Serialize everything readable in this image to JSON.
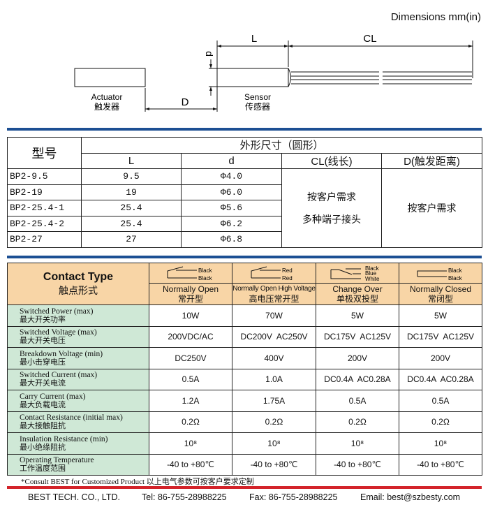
{
  "header": {
    "title": "Dimensions mm(in)"
  },
  "diagram": {
    "L": "L",
    "CL": "CL",
    "d": "d",
    "D": "D",
    "actuator_en": "Actuator",
    "actuator_cn": "触发器",
    "sensor_en": "Sensor",
    "sensor_cn": "传感器"
  },
  "dims_table": {
    "model_header": "型号",
    "group_header": "外形尺寸（圆形）",
    "columns": [
      "L",
      "d",
      "CL(线长)",
      "D(触发距离)"
    ],
    "rows": [
      {
        "model": "BP2-9.5",
        "L": "9.5",
        "d": "Φ4.0"
      },
      {
        "model": "BP2-19",
        "L": "19",
        "d": "Φ6.0"
      },
      {
        "model": "BP2-25.4-1",
        "L": "25.4",
        "d": "Φ5.6"
      },
      {
        "model": "BP2-25.4-2",
        "L": "25.4",
        "d": "Φ6.2"
      },
      {
        "model": "BP2-27",
        "L": "27",
        "d": "Φ6.8"
      }
    ],
    "cl_note_1": "按客户需求",
    "cl_note_2": "多种端子接头",
    "d_note": "按客户需求"
  },
  "contact_table": {
    "title_en": "Contact Type",
    "title_cn": "触点形式",
    "types": [
      {
        "en": "Normally Open",
        "cn": "常开型",
        "wires": [
          "Black",
          "Black"
        ],
        "icon": "normally-open-switch"
      },
      {
        "en": "Normally Open High Voltage",
        "cn": "高电压常开型",
        "wires": [
          "Red",
          "Red"
        ],
        "icon": "normally-open-switch"
      },
      {
        "en": "Change Over",
        "cn": "单极双投型",
        "wires": [
          "Black",
          "Blue",
          "White"
        ],
        "icon": "change-over-switch"
      },
      {
        "en": "Normally Closed",
        "cn": "常闭型",
        "wires": [
          "Black",
          "Black"
        ],
        "icon": "normally-closed-switch"
      }
    ],
    "rows": [
      {
        "en": "Switched Power (max)",
        "cn": "最大开关功率",
        "values": [
          "10W",
          "70W",
          "5W",
          "5W"
        ]
      },
      {
        "en": "Switched Voltage (max)",
        "cn": "最大开关电压",
        "values": [
          "200VDC/AC",
          "DC200V  AC250V",
          "DC175V  AC125V",
          "DC175V  AC125V"
        ]
      },
      {
        "en": "Breakdown Voltage (min)",
        "cn": "最小击穿电压",
        "values": [
          "DC250V",
          "400V",
          "200V",
          "200V"
        ]
      },
      {
        "en": "Switched Current (max)",
        "cn": "最大开关电流",
        "values": [
          "0.5A",
          "1.0A",
          "DC0.4A  AC0.28A",
          "DC0.4A  AC0.28A"
        ]
      },
      {
        "en": "Carry Current (max)",
        "cn": "最大负载电流",
        "values": [
          "1.2A",
          "1.75A",
          "0.5A",
          "0.5A"
        ]
      },
      {
        "en": "Contact Resistance (initial max)",
        "cn": "最大接触阻抗",
        "values": [
          "0.2Ω",
          "0.2Ω",
          "0.2Ω",
          "0.2Ω"
        ]
      },
      {
        "en": "Insulation Resistance (min)",
        "cn": "最小绝缘阻抗",
        "values": [
          "10⁸",
          "10⁸",
          "10⁸",
          "10⁸"
        ]
      },
      {
        "en": "Operating Temperature",
        "cn": "工作温度范围",
        "values": [
          "-40 to +80℃",
          "-40 to +80℃",
          "-40 to +80℃",
          "-40 to +80℃"
        ]
      }
    ]
  },
  "note": "*Consult BEST for Customized Product 以上电气参数可按客户要求定制",
  "footer": {
    "company": "BEST TECH. CO., LTD.",
    "tel": "Tel: 86-755-28988225",
    "fax": "Fax: 86-755-28988225",
    "email": "Email: best@szbesty.com"
  },
  "colors": {
    "blue_rule": "#1c4f93",
    "red_rule": "#d3232a",
    "header_bg": "#f8d5a6",
    "label_bg": "#cfe8d6"
  }
}
